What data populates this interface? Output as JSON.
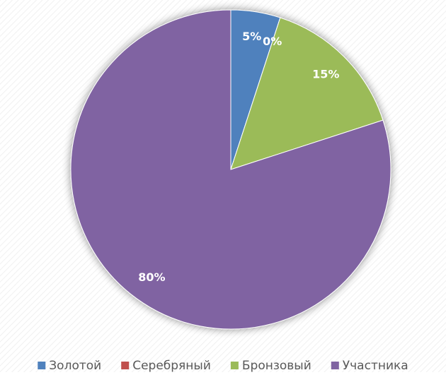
{
  "chart_data": {
    "type": "pie",
    "categories": [
      "Золотой",
      "Серебряный",
      "Бронзовый",
      "Участника"
    ],
    "values": [
      5,
      0,
      15,
      80
    ],
    "value_labels": [
      "5%",
      "0%",
      "15%",
      "80%"
    ],
    "colors": [
      "#4f81bd",
      "#c0504d",
      "#9bbb59",
      "#8064a2"
    ],
    "legend": "bottom"
  }
}
